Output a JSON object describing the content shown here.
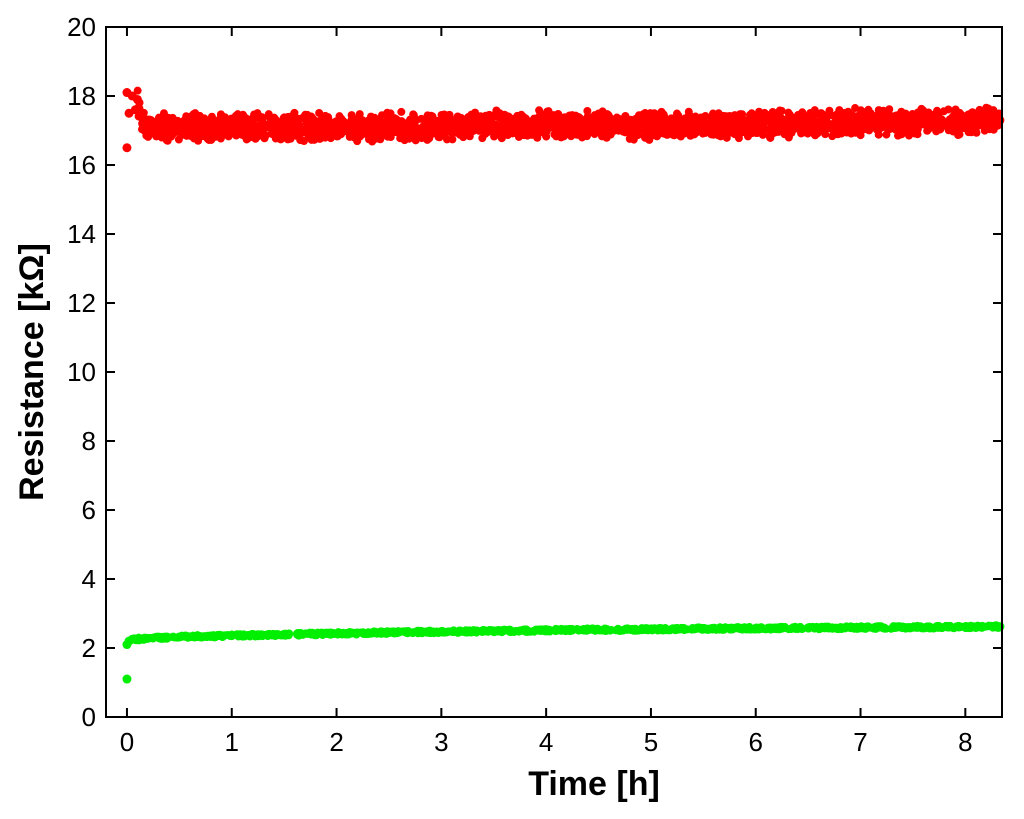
{
  "chart_data": {
    "type": "scatter",
    "xlabel": "Time [h]",
    "ylabel": "Resistance [kΩ]",
    "xlim": [
      -0.2,
      8.35
    ],
    "ylim": [
      0,
      20
    ],
    "x_ticks": [
      0,
      1,
      2,
      3,
      4,
      5,
      6,
      7,
      8
    ],
    "y_ticks": [
      0,
      2,
      4,
      6,
      8,
      10,
      12,
      14,
      16,
      18,
      20
    ],
    "grid": false,
    "legend": "none",
    "series": [
      {
        "color": "#ff0000",
        "points": [
          [
            0.0,
            16.5
          ],
          [
            0.0,
            18.1
          ],
          [
            0.02,
            17.5
          ],
          [
            0.05,
            18.0
          ],
          [
            0.08,
            17.6
          ],
          [
            0.1,
            17.9
          ],
          [
            0.15,
            17.2
          ],
          [
            0.2,
            17.0
          ],
          [
            0.3,
            17.1
          ],
          [
            0.5,
            17.1
          ],
          [
            0.75,
            17.1
          ],
          [
            1.0,
            17.1
          ],
          [
            1.25,
            17.1
          ],
          [
            1.5,
            17.1
          ],
          [
            1.75,
            17.1
          ],
          [
            2.0,
            17.1
          ],
          [
            2.25,
            17.1
          ],
          [
            2.5,
            17.1
          ],
          [
            2.75,
            17.1
          ],
          [
            3.0,
            17.1
          ],
          [
            3.25,
            17.15
          ],
          [
            3.5,
            17.15
          ],
          [
            3.75,
            17.15
          ],
          [
            4.0,
            17.15
          ],
          [
            4.25,
            17.15
          ],
          [
            4.5,
            17.15
          ],
          [
            4.75,
            17.15
          ],
          [
            5.0,
            17.15
          ],
          [
            5.25,
            17.15
          ],
          [
            5.5,
            17.15
          ],
          [
            5.75,
            17.15
          ],
          [
            6.0,
            17.2
          ],
          [
            6.25,
            17.2
          ],
          [
            6.5,
            17.2
          ],
          [
            6.75,
            17.2
          ],
          [
            7.0,
            17.25
          ],
          [
            7.25,
            17.25
          ],
          [
            7.5,
            17.25
          ],
          [
            7.75,
            17.25
          ],
          [
            8.0,
            17.3
          ],
          [
            8.25,
            17.3
          ],
          [
            8.33,
            17.3
          ]
        ]
      },
      {
        "color": "#00ee00",
        "points": [
          [
            0.0,
            1.1
          ],
          [
            0.0,
            2.1
          ],
          [
            0.02,
            2.2
          ],
          [
            0.05,
            2.25
          ],
          [
            0.2,
            2.28
          ],
          [
            0.5,
            2.32
          ],
          [
            1.0,
            2.36
          ],
          [
            1.5,
            2.39
          ],
          [
            2.0,
            2.42
          ],
          [
            2.5,
            2.45
          ],
          [
            3.0,
            2.47
          ],
          [
            3.5,
            2.49
          ],
          [
            4.0,
            2.51
          ],
          [
            4.5,
            2.53
          ],
          [
            5.0,
            2.54
          ],
          [
            5.5,
            2.56
          ],
          [
            6.0,
            2.57
          ],
          [
            6.5,
            2.58
          ],
          [
            7.0,
            2.59
          ],
          [
            7.5,
            2.6
          ],
          [
            8.0,
            2.61
          ],
          [
            8.33,
            2.62
          ]
        ]
      }
    ]
  }
}
